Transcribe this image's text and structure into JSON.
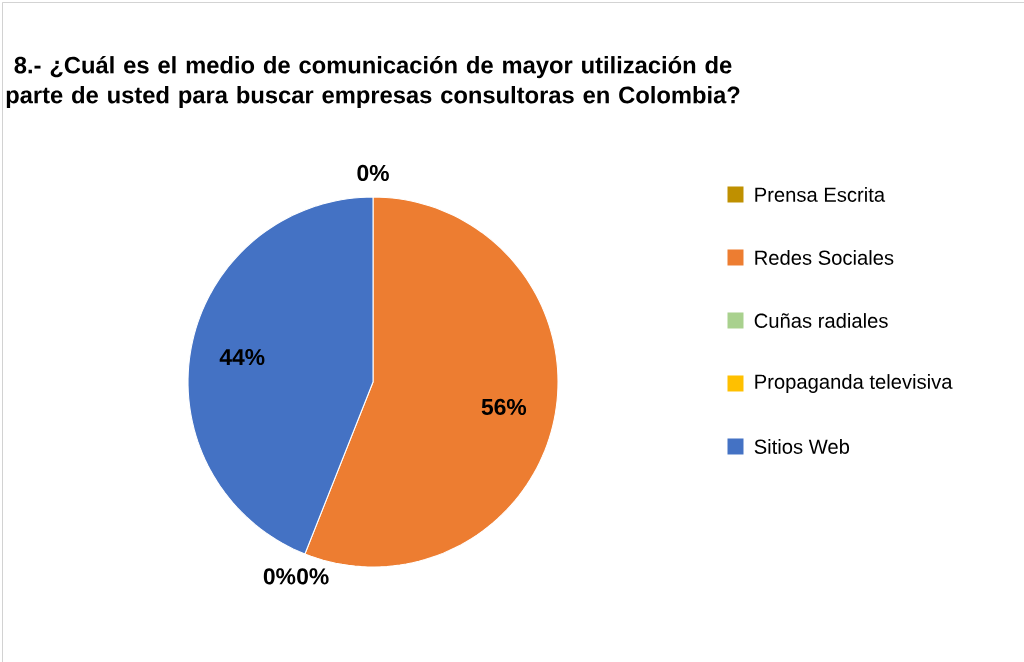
{
  "chart_data": {
    "type": "pie",
    "title": "8.- ¿Cuál es el medio de comunicación de mayor utilización de parte de usted para buscar empresas consultoras en Colombia?",
    "categories": [
      "Prensa Escrita",
      "Redes Sociales",
      "Cuñas radiales",
      "Propaganda televisiva",
      "Sitios Web"
    ],
    "values": [
      0,
      56,
      0,
      0,
      44
    ],
    "colors": [
      "#bf9000",
      "#ed7d31",
      "#a9d18e",
      "#ffc000",
      "#4472c4"
    ],
    "value_labels": [
      "0%",
      "56%",
      "0%",
      "0%",
      "44%"
    ],
    "legend": "right"
  }
}
